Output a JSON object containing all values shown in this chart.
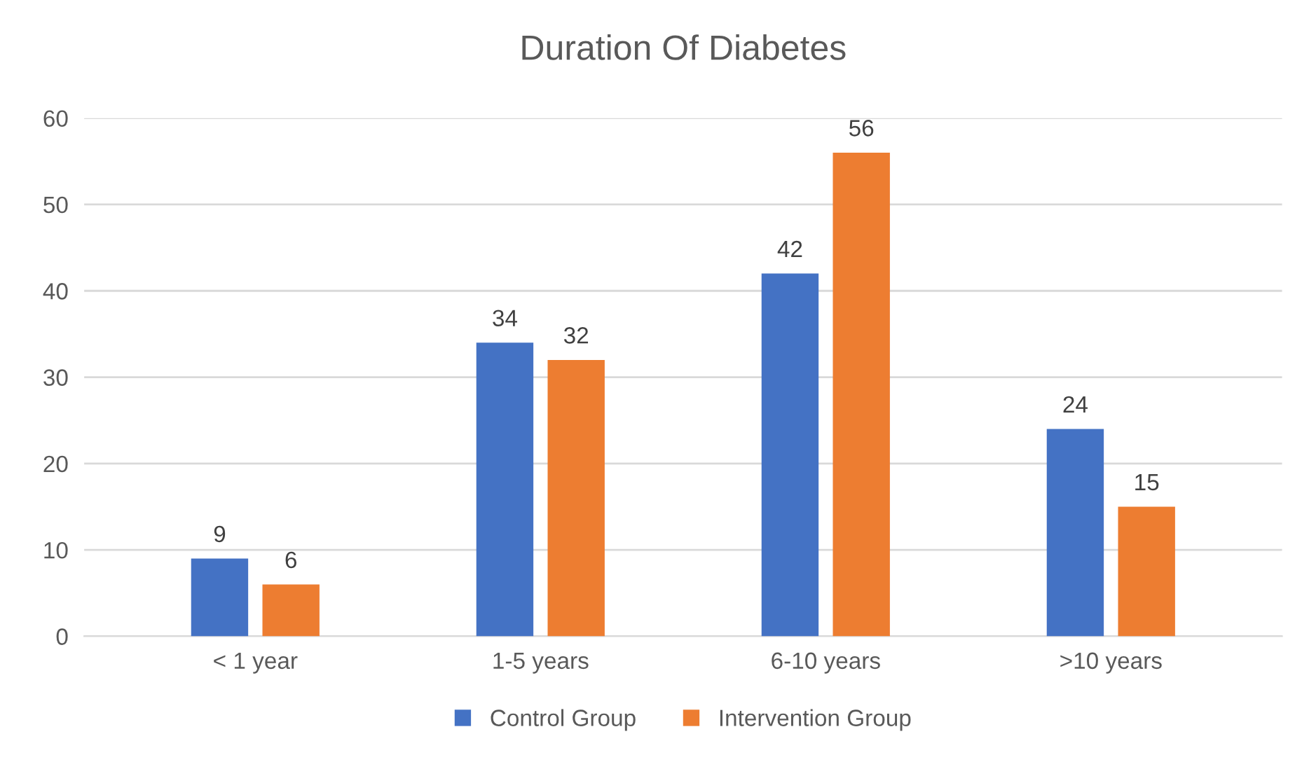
{
  "chart_data": {
    "type": "bar",
    "title": "Duration Of Diabetes",
    "categories": [
      "< 1 year",
      "1-5 years",
      "6-10 years",
      ">10 years"
    ],
    "series": [
      {
        "name": "Control Group",
        "color": "#4472c4",
        "values": [
          9,
          34,
          42,
          24
        ]
      },
      {
        "name": "Intervention Group",
        "color": "#ed7d31",
        "values": [
          6,
          32,
          56,
          15
        ]
      }
    ],
    "ylim": [
      0,
      60
    ],
    "yticks": [
      0,
      10,
      20,
      30,
      40,
      50,
      60
    ],
    "grid": "y",
    "legend": "bottom",
    "data_labels": true
  }
}
